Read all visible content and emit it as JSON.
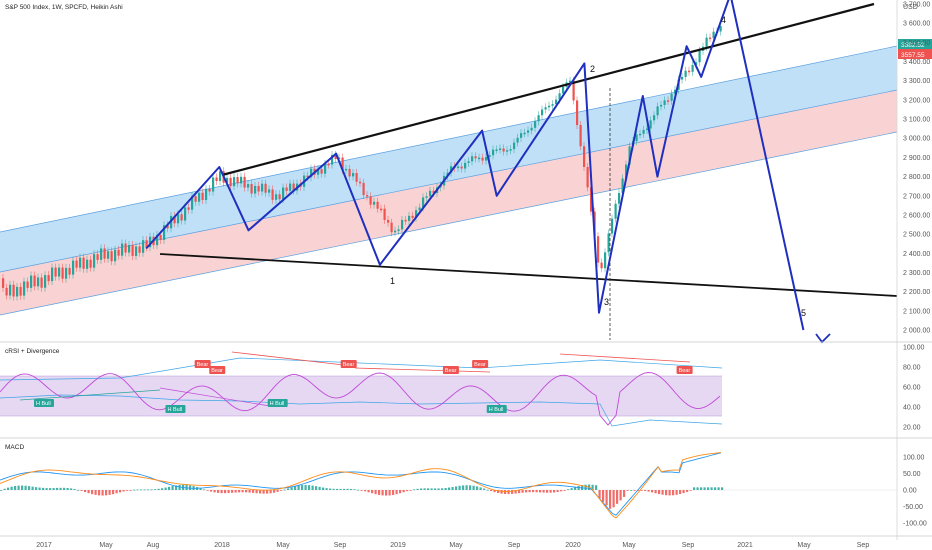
{
  "header": {
    "title": "S&P 500 Index, 1W, SPCFD, Heikin Ashi"
  },
  "colors": {
    "up": "#26a69a",
    "down": "#ef5350",
    "wave": "#1f2fbf",
    "trend": "#111111",
    "blue_band": "#bfe0f7",
    "red_band": "#f9d3d3",
    "band_edge_blue": "#5a9fe0",
    "band_edge_red": "#e88a8a",
    "price_badge": "#26a69a",
    "price_badge2": "#ef5350",
    "rsi_band": "#e4d4f2",
    "rsi_line": "#c04ad8",
    "rsi_line2": "#2fa0f0",
    "macd_line": "#2196f3",
    "signal_line": "#ff8c1a"
  },
  "price_axis": {
    "unit": "USD",
    "ticks": [
      "3 700.00",
      "3 600.00",
      "3 500.00",
      "3 400.00",
      "3 300.00",
      "3 200.00",
      "3 100.00",
      "3 000.00",
      "2 900.00",
      "2 800.00",
      "2 700.00",
      "2 600.00",
      "2 500.00",
      "2 400.00",
      "2 300.00",
      "2 200.00",
      "2 100.00",
      "2 000.00"
    ],
    "last_price": "3582.52",
    "prev_price": "3557.55"
  },
  "time_axis": {
    "labels": [
      "2017",
      "May",
      "Aug",
      "2018",
      "May",
      "Sep",
      "2019",
      "May",
      "Sep",
      "2020",
      "May",
      "Sep",
      "2021",
      "May",
      "Sep"
    ]
  },
  "chart_data": [
    {
      "type": "line",
      "panel": "price",
      "x": [
        "2017-01",
        "2017-05",
        "2017-08",
        "2018-01",
        "2018-05",
        "2018-09",
        "2019-01",
        "2019-05",
        "2019-09",
        "2020-01",
        "2020-03",
        "2020-05",
        "2020-09",
        "2020-11"
      ],
      "series": [
        {
          "values": [
            2270,
            2390,
            2440,
            2800,
            2700,
            2900,
            2510,
            2850,
            2960,
            3300,
            2300,
            2950,
            3350,
            3582.52
          ]
        }
      ],
      "wave_points": [
        {
          "x": "2017-08",
          "y": 2425,
          "label": ""
        },
        {
          "x": "2018-01",
          "y": 2850,
          "label": ""
        },
        {
          "x": "2018-03",
          "y": 2520,
          "label": ""
        },
        {
          "x": "2018-09",
          "y": 2920,
          "label": ""
        },
        {
          "x": "2018-12",
          "y": 2340,
          "label": "1"
        },
        {
          "x": "2019-07",
          "y": 3040,
          "label": ""
        },
        {
          "x": "2019-08",
          "y": 2700,
          "label": ""
        },
        {
          "x": "2020-02",
          "y": 3390,
          "label": "2"
        },
        {
          "x": "2020-03",
          "y": 2090,
          "label": "3"
        },
        {
          "x": "2020-06",
          "y": 3220,
          "label": ""
        },
        {
          "x": "2020-07",
          "y": 2800,
          "label": ""
        },
        {
          "x": "2020-09",
          "y": 3480,
          "label": ""
        },
        {
          "x": "2020-10",
          "y": 3320,
          "label": ""
        },
        {
          "x": "2020-12",
          "y": 3750,
          "label": "4"
        },
        {
          "x": "2021-05",
          "y": 2000,
          "label": "5"
        }
      ],
      "ylim": [
        1950,
        3760
      ],
      "annotations": [
        "1",
        "2",
        "3",
        "4",
        "5"
      ]
    },
    {
      "type": "line",
      "panel": "rsi",
      "title": "cRSI + Divergence",
      "ticks": [
        "100.00",
        "80.00",
        "60.00",
        "40.00",
        "20.00"
      ],
      "ylim": [
        0,
        100
      ],
      "divergence_labels": [
        {
          "text": "Bear",
          "x": "2017-12"
        },
        {
          "text": "Bear",
          "x": "2018-01"
        },
        {
          "text": "Bear",
          "x": "2018-10"
        },
        {
          "text": "Bear",
          "x": "2019-05"
        },
        {
          "text": "Bear",
          "x": "2019-07"
        },
        {
          "text": "Bear",
          "x": "2020-09"
        },
        {
          "text": "H Bull",
          "x": "2017-01"
        },
        {
          "text": "H Bull",
          "x": "2017-10"
        },
        {
          "text": "H Bull",
          "x": "2018-05"
        },
        {
          "text": "H Bull",
          "x": "2019-08"
        }
      ]
    },
    {
      "type": "bar",
      "panel": "macd",
      "title": "MACD",
      "ticks": [
        "100.00",
        "50.00",
        "0.00",
        "-50.00",
        "-100.00"
      ],
      "ylim": [
        -120,
        130
      ]
    }
  ]
}
